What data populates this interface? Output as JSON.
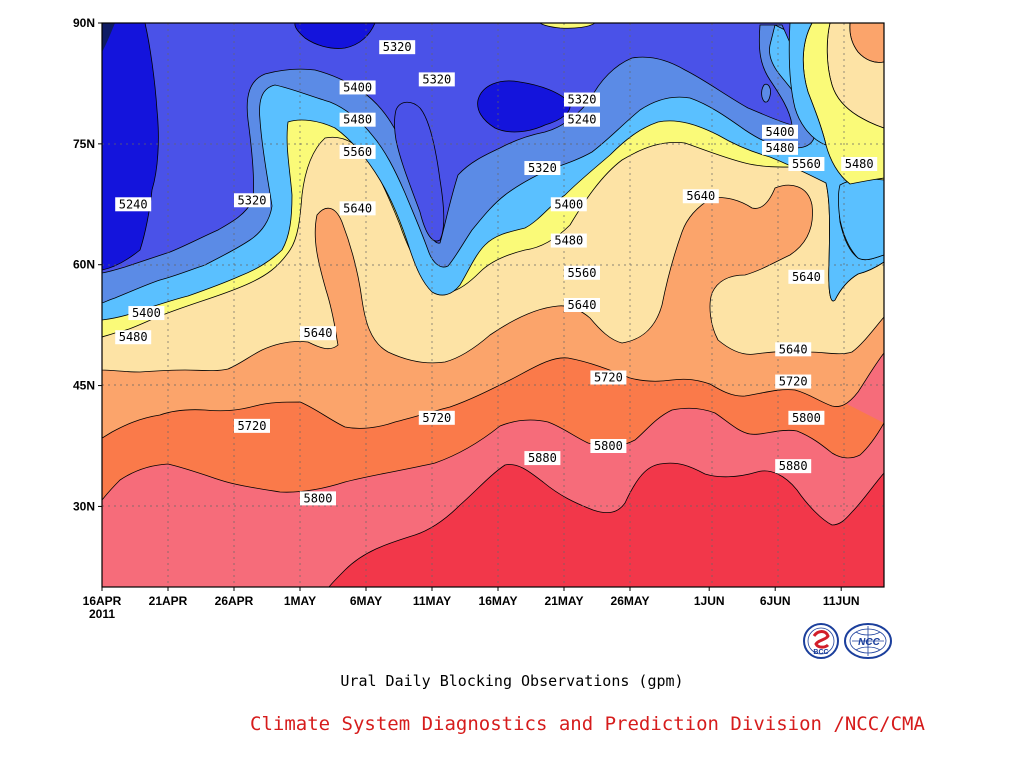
{
  "chart_data": {
    "type": "heatmap",
    "subtitle": "Ural Daily Blocking Observations (gpm)",
    "title": "Climate System Diagnostics and Prediction Division /NCC/CMA",
    "x_ticks": [
      "16APR",
      "21APR",
      "26APR",
      "1MAY",
      "6MAY",
      "11MAY",
      "16MAY",
      "21MAY",
      "26MAY",
      "1JUN",
      "6JUN",
      "11JUN"
    ],
    "x_year": "2011",
    "y_ticks": [
      "30N",
      "45N",
      "60N",
      "75N",
      "90N"
    ],
    "xlim": [
      "2011-04-16",
      "2011-06-14"
    ],
    "ylim": [
      20,
      90
    ],
    "contour_levels": [
      5160,
      5240,
      5320,
      5400,
      5480,
      5560,
      5640,
      5720,
      5800,
      5880
    ],
    "level_colors": [
      "#0f1c64",
      "#1414dc",
      "#4a52e8",
      "#5b8be6",
      "#5ac0ff",
      "#fafa78",
      "#fde3a5",
      "#fba46b",
      "#fa7a4a",
      "#f66c7a",
      "#f2374a"
    ],
    "contour_labels": [
      {
        "date": "2011-04-17",
        "lat": 67.5,
        "value": "5240"
      },
      {
        "date": "2011-04-18",
        "lat": 54,
        "value": "5400"
      },
      {
        "date": "2011-04-17",
        "lat": 51,
        "value": "5480"
      },
      {
        "date": "2011-04-26",
        "lat": 68,
        "value": "5320"
      },
      {
        "date": "2011-04-26",
        "lat": 40,
        "value": "5720"
      },
      {
        "date": "2011-05-01",
        "lat": 51.5,
        "value": "5640"
      },
      {
        "date": "2011-05-01",
        "lat": 31,
        "value": "5800"
      },
      {
        "date": "2011-05-04",
        "lat": 82,
        "value": "5400"
      },
      {
        "date": "2011-05-04",
        "lat": 78,
        "value": "5480"
      },
      {
        "date": "2011-05-04",
        "lat": 74,
        "value": "5560"
      },
      {
        "date": "2011-05-04",
        "lat": 67,
        "value": "5640"
      },
      {
        "date": "2011-05-07",
        "lat": 87,
        "value": "5320"
      },
      {
        "date": "2011-05-10",
        "lat": 83,
        "value": "5320"
      },
      {
        "date": "2011-05-10",
        "lat": 41,
        "value": "5720"
      },
      {
        "date": "2011-05-18",
        "lat": 72,
        "value": "5320"
      },
      {
        "date": "2011-05-18",
        "lat": 36,
        "value": "5880"
      },
      {
        "date": "2011-05-21",
        "lat": 80.5,
        "value": "5320"
      },
      {
        "date": "2011-05-21",
        "lat": 78,
        "value": "5240"
      },
      {
        "date": "2011-05-20",
        "lat": 67.5,
        "value": "5400"
      },
      {
        "date": "2011-05-20",
        "lat": 63,
        "value": "5480"
      },
      {
        "date": "2011-05-21",
        "lat": 59,
        "value": "5560"
      },
      {
        "date": "2011-05-21",
        "lat": 55,
        "value": "5640"
      },
      {
        "date": "2011-05-23",
        "lat": 46,
        "value": "5720"
      },
      {
        "date": "2011-05-23",
        "lat": 37.5,
        "value": "5800"
      },
      {
        "date": "2011-05-30",
        "lat": 68.5,
        "value": "5640"
      },
      {
        "date": "2011-06-05",
        "lat": 76.5,
        "value": "5400"
      },
      {
        "date": "2011-06-05",
        "lat": 74.5,
        "value": "5480"
      },
      {
        "date": "2011-06-07",
        "lat": 72.5,
        "value": "5560"
      },
      {
        "date": "2011-06-07",
        "lat": 58.5,
        "value": "5640"
      },
      {
        "date": "2011-06-06",
        "lat": 49.5,
        "value": "5640"
      },
      {
        "date": "2011-06-06",
        "lat": 45.5,
        "value": "5720"
      },
      {
        "date": "2011-06-07",
        "lat": 41,
        "value": "5800"
      },
      {
        "date": "2011-06-06",
        "lat": 35,
        "value": "5880"
      },
      {
        "date": "2011-06-11",
        "lat": 72.5,
        "value": "5480"
      }
    ]
  },
  "logos": [
    {
      "name": "bcc-logo",
      "text": "BCC"
    },
    {
      "name": "ncc-logo",
      "text": "NCC"
    }
  ]
}
